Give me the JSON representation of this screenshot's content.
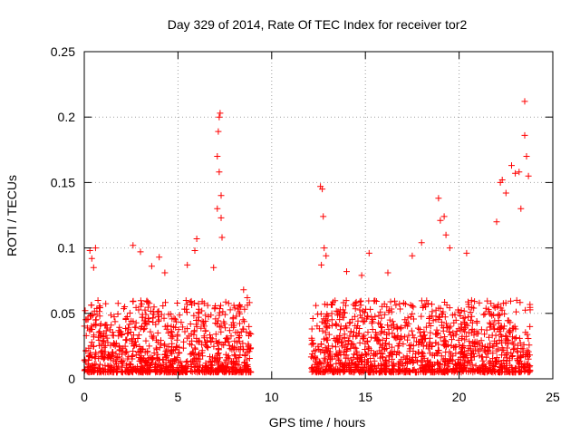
{
  "chart_data": {
    "type": "scatter",
    "title": "Day 329 of 2014, Rate Of TEC Index for receiver tor2",
    "xlabel": "GPS time / hours",
    "ylabel": "ROTI / TECUs",
    "xlim": [
      0,
      25
    ],
    "ylim": [
      0,
      0.25
    ],
    "x_ticks": [
      "0",
      "5",
      "10",
      "15",
      "20",
      "25"
    ],
    "y_ticks": [
      "0",
      "0.05",
      "0.1",
      "0.15",
      "0.2",
      "0.25"
    ],
    "grid": true,
    "marker": "plus",
    "series_color": "#ff0000",
    "background_noise": {
      "segments": [
        [
          0.0,
          8.9
        ],
        [
          12.1,
          23.8
        ]
      ],
      "typical_range": [
        0.005,
        0.06
      ],
      "density_per_hour": 110,
      "baseline_shape": "right-skewed, concentrated 0.005-0.035"
    },
    "series": [
      {
        "x": [
          0.3,
          0.4,
          0.5,
          0.6,
          2.6,
          3.0,
          3.6,
          4.0,
          4.3,
          5.5,
          5.9,
          6.0,
          6.9,
          7.1,
          7.1,
          7.15,
          7.2,
          7.2,
          7.25,
          7.3,
          7.35,
          7.3,
          8.5,
          8.7,
          12.6,
          12.7,
          12.75,
          12.8,
          12.65,
          12.9,
          14.0,
          14.8,
          15.2,
          16.2,
          17.5,
          18.0,
          18.9,
          19.0,
          19.2,
          19.3,
          19.5,
          20.4,
          22.0,
          22.2,
          22.3,
          22.5,
          22.8,
          23.0,
          23.2,
          23.3,
          23.5,
          23.5,
          23.6,
          23.7
        ],
        "y": [
          0.098,
          0.092,
          0.085,
          0.1,
          0.102,
          0.097,
          0.086,
          0.093,
          0.081,
          0.087,
          0.098,
          0.107,
          0.085,
          0.13,
          0.17,
          0.189,
          0.158,
          0.2,
          0.203,
          0.14,
          0.108,
          0.123,
          0.068,
          0.062,
          0.147,
          0.145,
          0.124,
          0.1,
          0.087,
          0.094,
          0.082,
          0.079,
          0.096,
          0.081,
          0.094,
          0.104,
          0.138,
          0.121,
          0.124,
          0.11,
          0.1,
          0.096,
          0.12,
          0.15,
          0.152,
          0.142,
          0.163,
          0.157,
          0.158,
          0.13,
          0.212,
          0.186,
          0.17,
          0.155
        ]
      }
    ]
  }
}
